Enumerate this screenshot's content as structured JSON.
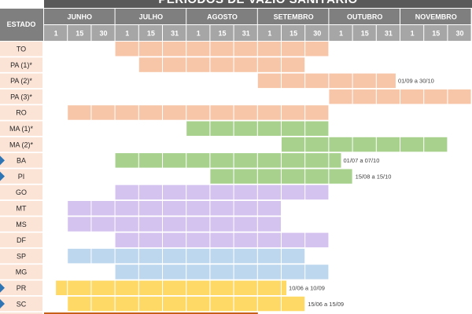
{
  "title": "PERÍODOS DE VAZIO SANITÁRIO",
  "chart_data": {
    "type": "gantt",
    "row_header": "ESTADO",
    "months": [
      "JUNHO",
      "JULHO",
      "AGOSTO",
      "SETEMBRO",
      "OUTUBRO",
      "NOVEMBRO"
    ],
    "day_ticks": [
      [
        "1",
        "15",
        "30"
      ],
      [
        "1",
        "15",
        "31"
      ],
      [
        "1",
        "15",
        "31"
      ],
      [
        "1",
        "15",
        "30"
      ],
      [
        "1",
        "15",
        "31"
      ],
      [
        "1",
        "15",
        "30"
      ]
    ],
    "colors": {
      "orange": "#f7c6a8",
      "green": "#a9d18e",
      "purple": "#d5c3ef",
      "blue": "#bdd7ee",
      "yellow": "#ffd966",
      "stateband": "#fbe3d6",
      "marker": "#2e75b6"
    },
    "rows": [
      {
        "label": "TO",
        "color": "orange",
        "start": 3,
        "end": 12,
        "note": "",
        "marker": false
      },
      {
        "label": "PA (1)*",
        "color": "orange",
        "start": 4,
        "end": 11,
        "note": "",
        "marker": false
      },
      {
        "label": "PA (2)*",
        "color": "orange",
        "start": 9,
        "end": 14.8,
        "note": "01/09 a 30/10",
        "marker": false
      },
      {
        "label": "PA (3)*",
        "color": "orange",
        "start": 12,
        "end": 18,
        "note": "",
        "marker": false
      },
      {
        "label": "RO",
        "color": "orange",
        "start": 1,
        "end": 12,
        "note": "",
        "marker": false
      },
      {
        "label": "MA (1)*",
        "color": "green",
        "start": 6,
        "end": 12,
        "note": "",
        "marker": false
      },
      {
        "label": "MA (2)*",
        "color": "green",
        "start": 10,
        "end": 17,
        "note": "",
        "marker": false
      },
      {
        "label": "BA",
        "color": "green",
        "start": 3,
        "end": 12.5,
        "note": "01/07 a 07/10",
        "marker": true
      },
      {
        "label": "PI",
        "color": "green",
        "start": 7,
        "end": 13,
        "note": "15/08 a 15/10",
        "marker": true
      },
      {
        "label": "GO",
        "color": "purple",
        "start": 3,
        "end": 12,
        "note": "",
        "marker": false
      },
      {
        "label": "MT",
        "color": "purple",
        "start": 1,
        "end": 10,
        "note": "",
        "marker": false
      },
      {
        "label": "MS",
        "color": "purple",
        "start": 1,
        "end": 10,
        "note": "",
        "marker": false
      },
      {
        "label": "DF",
        "color": "purple",
        "start": 3,
        "end": 12,
        "note": "",
        "marker": false
      },
      {
        "label": "SP",
        "color": "blue",
        "start": 1,
        "end": 11,
        "note": "",
        "marker": false
      },
      {
        "label": "MG",
        "color": "blue",
        "start": 3,
        "end": 12,
        "note": "",
        "marker": false
      },
      {
        "label": "PR",
        "color": "yellow",
        "start": 0.5,
        "end": 10.2,
        "note": "10/06 a 10/09",
        "marker": true
      },
      {
        "label": "SC",
        "color": "yellow",
        "start": 1,
        "end": 11,
        "note": "15/06 a 15/09",
        "marker": true
      }
    ]
  }
}
